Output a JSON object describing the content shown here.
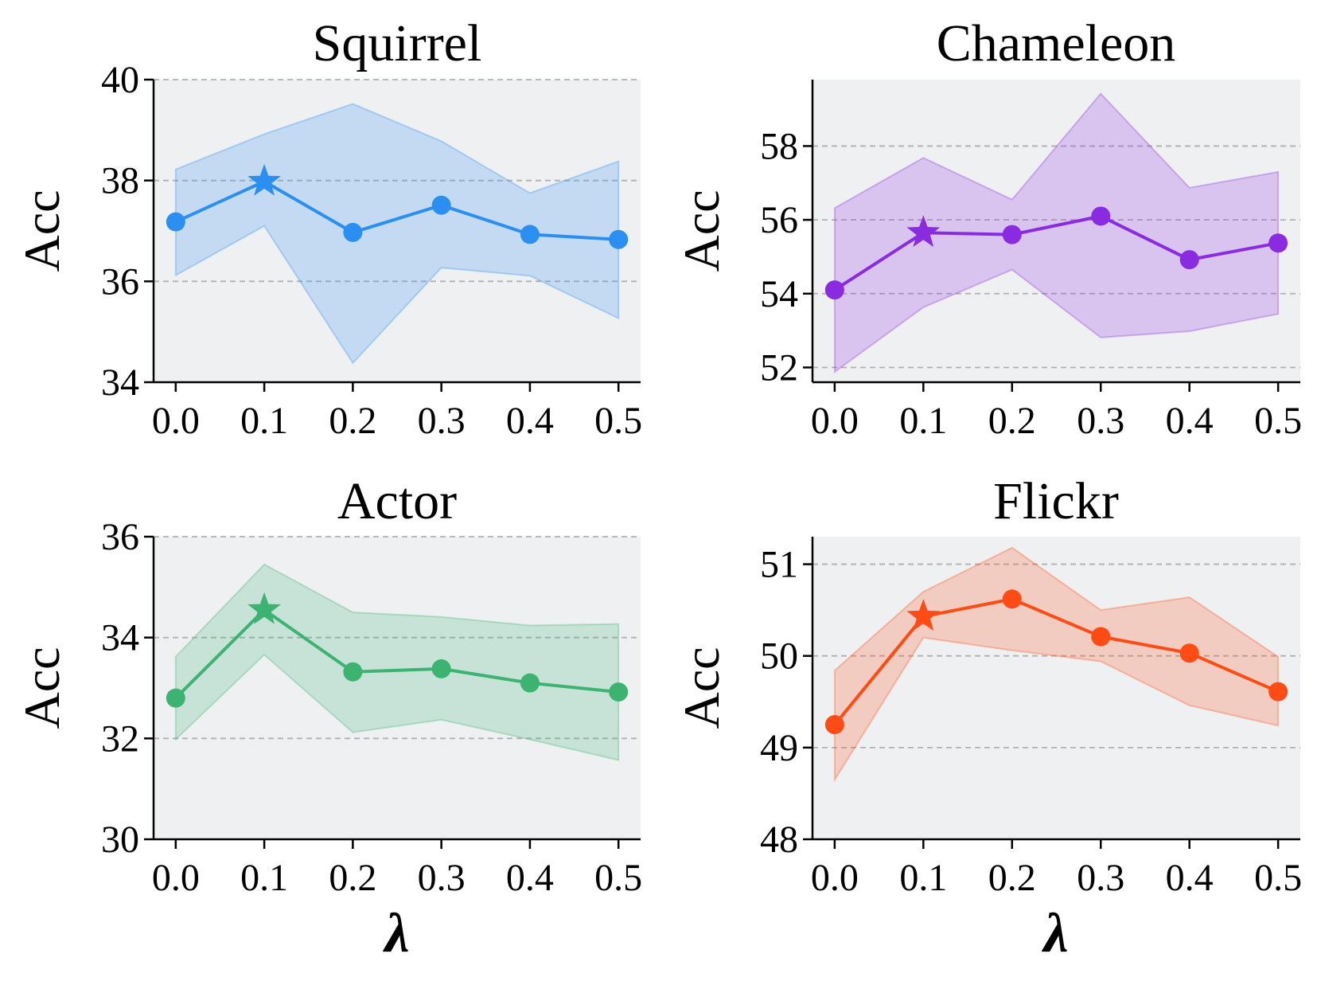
{
  "figure": {
    "background": "#ffffff",
    "plot_background": "#eff0f2",
    "grid_color": "#b0b0b0"
  },
  "chart_data": [
    {
      "type": "line",
      "title": "Squirrel",
      "xlabel": "",
      "ylabel": "Acc",
      "color": "#2a8ff0",
      "x": [
        0.0,
        0.1,
        0.2,
        0.3,
        0.4,
        0.5
      ],
      "x_ticklabels": [
        "0.0",
        "0.1",
        "0.2",
        "0.3",
        "0.4",
        "0.5"
      ],
      "xlim": [
        -0.025,
        0.525
      ],
      "values": [
        37.18,
        37.98,
        36.97,
        37.51,
        36.93,
        36.83
      ],
      "upper": [
        38.22,
        38.92,
        39.52,
        38.78,
        37.75,
        38.38
      ],
      "lower": [
        36.12,
        37.1,
        34.38,
        36.27,
        36.11,
        35.27
      ],
      "best_index": 1,
      "ylim": [
        34,
        40
      ],
      "yticks": [
        34,
        36,
        38,
        40
      ],
      "y_ticklabels": [
        "34",
        "36",
        "38",
        "40"
      ],
      "gridlines": [
        36,
        38,
        40
      ]
    },
    {
      "type": "line",
      "title": "Chameleon",
      "xlabel": "",
      "ylabel": "Acc",
      "color": "#8a2be2",
      "x": [
        0.0,
        0.1,
        0.2,
        0.3,
        0.4,
        0.5
      ],
      "x_ticklabels": [
        "0.0",
        "0.1",
        "0.2",
        "0.3",
        "0.4",
        "0.5"
      ],
      "xlim": [
        -0.025,
        0.525
      ],
      "values": [
        54.1,
        55.65,
        55.6,
        56.1,
        54.92,
        55.37
      ],
      "upper": [
        56.32,
        57.68,
        56.55,
        59.42,
        56.87,
        57.3
      ],
      "lower": [
        51.88,
        53.63,
        54.65,
        52.81,
        52.98,
        53.45
      ],
      "best_index": 1,
      "ylim": [
        51.6,
        59.8
      ],
      "yticks": [
        52,
        54,
        56,
        58
      ],
      "y_ticklabels": [
        "52",
        "54",
        "56",
        "58"
      ],
      "gridlines": [
        52,
        54,
        56,
        58
      ]
    },
    {
      "type": "line",
      "title": "Actor",
      "xlabel": "λ",
      "ylabel": "Acc",
      "color": "#3cb371",
      "x": [
        0.0,
        0.1,
        0.2,
        0.3,
        0.4,
        0.5
      ],
      "x_ticklabels": [
        "0.0",
        "0.1",
        "0.2",
        "0.3",
        "0.4",
        "0.5"
      ],
      "xlim": [
        -0.025,
        0.525
      ],
      "values": [
        32.8,
        34.55,
        33.32,
        33.38,
        33.1,
        32.92
      ],
      "upper": [
        33.62,
        35.45,
        34.5,
        34.41,
        34.24,
        34.27
      ],
      "lower": [
        31.98,
        33.66,
        32.12,
        32.37,
        31.98,
        31.57
      ],
      "best_index": 1,
      "ylim": [
        30,
        36
      ],
      "yticks": [
        30,
        32,
        34,
        36
      ],
      "y_ticklabels": [
        "30",
        "32",
        "34",
        "36"
      ],
      "gridlines": [
        32,
        34,
        36
      ]
    },
    {
      "type": "line",
      "title": "Flickr",
      "xlabel": "λ",
      "ylabel": "Acc",
      "color": "#ff4b14",
      "x": [
        0.0,
        0.1,
        0.2,
        0.3,
        0.4,
        0.5
      ],
      "x_ticklabels": [
        "0.0",
        "0.1",
        "0.2",
        "0.3",
        "0.4",
        "0.5"
      ],
      "xlim": [
        -0.025,
        0.525
      ],
      "values": [
        49.25,
        50.43,
        50.62,
        50.21,
        50.03,
        49.61
      ],
      "upper": [
        49.84,
        50.7,
        51.18,
        50.5,
        50.64,
        49.99
      ],
      "lower": [
        48.65,
        50.2,
        50.06,
        49.94,
        49.46,
        49.24
      ],
      "best_index": 1,
      "ylim": [
        48,
        51.3
      ],
      "yticks": [
        48,
        49,
        50,
        51
      ],
      "y_ticklabels": [
        "48",
        "49",
        "50",
        "51"
      ],
      "gridlines": [
        49,
        50,
        51
      ]
    }
  ]
}
